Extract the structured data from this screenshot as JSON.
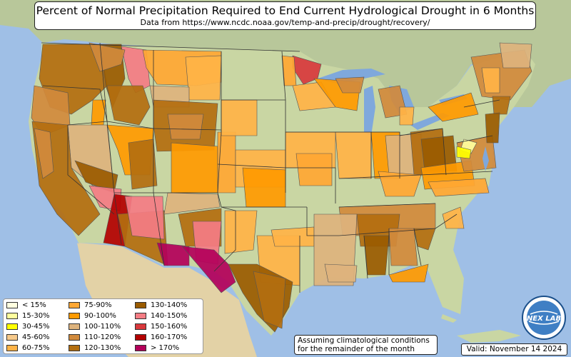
{
  "title": "Percent of Normal Precipitation Required to End Current Hydrological Drought in 6 Months",
  "subtitle": "Data from https://www.ncdc.noaa.gov/temp-and-precip/drought/recovery/",
  "legend": [
    {
      "label": "< 15%",
      "color": "#ffffe0"
    },
    {
      "label": "15-30%",
      "color": "#ffff9e"
    },
    {
      "label": "30-45%",
      "color": "#ffff00"
    },
    {
      "label": "45-60%",
      "color": "#f6c98a"
    },
    {
      "label": "60-75%",
      "color": "#ffb347"
    },
    {
      "label": "75-90%",
      "color": "#ffa733"
    },
    {
      "label": "90-100%",
      "color": "#ff9a00"
    },
    {
      "label": "100-110%",
      "color": "#ddb37d"
    },
    {
      "label": "110-120%",
      "color": "#d18a3c"
    },
    {
      "label": "120-130%",
      "color": "#b36e0f"
    },
    {
      "label": "130-140%",
      "color": "#9a5b00"
    },
    {
      "label": "140-150%",
      "color": "#f47c84"
    },
    {
      "label": "150-160%",
      "color": "#d8383c"
    },
    {
      "label": "160-170%",
      "color": "#b30000"
    },
    {
      "label": "> 170%",
      "color": "#b3005a"
    }
  ],
  "note_line1": "Assuming climatological conditions",
  "note_line2": "for the remainder of the month",
  "valid": "Valid: November 14 2024",
  "logo_text": "NEX LAB",
  "colors": {
    "ocean": "#9fbfe6",
    "land": "#c9d6a3",
    "land_dark": "#b9c78d",
    "canada": "#b8c79a",
    "mexico": "#e3d2a6",
    "lakes": "#7fa8dc"
  }
}
